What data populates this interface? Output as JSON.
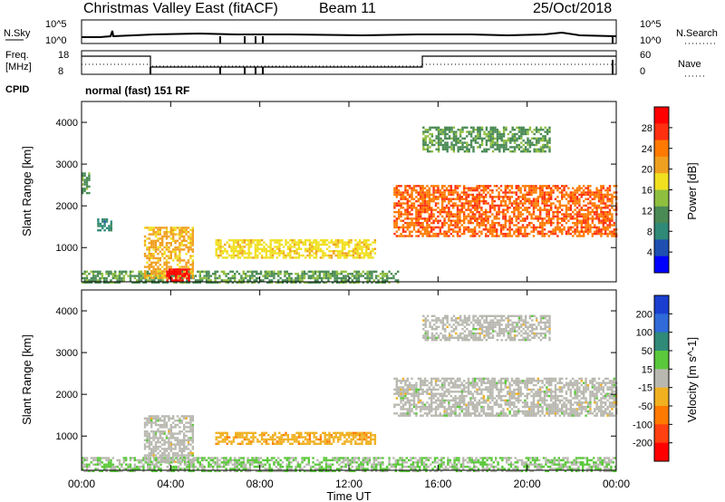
{
  "header": {
    "title": "Christmas Valley East (fitACF)",
    "beam": "Beam 11",
    "date": "25/Oct/2018"
  },
  "sky_panel": {
    "left_label": "N.Sky",
    "left_ticks": [
      "10^5",
      "10^0"
    ],
    "right_ticks": [
      "10^5",
      "10^0"
    ],
    "right_label": "N.Search"
  },
  "freq_panel": {
    "left_label_line1": "Freq.",
    "left_label_line2": "[MHz]",
    "left_ticks": [
      "18",
      "8"
    ],
    "right_ticks": [
      "60",
      "0"
    ],
    "right_label": "Nave"
  },
  "cpid": {
    "label": "CPID",
    "mode": "normal (fast) 151 RF"
  },
  "x_axis": {
    "title": "Time UT",
    "ticks": [
      "00:00",
      "04:00",
      "08:00",
      "12:00",
      "16:00",
      "20:00",
      "00:00"
    ]
  },
  "colors": {
    "power_scale": [
      "#0000ff",
      "#1f4fb0",
      "#2f8a78",
      "#4a8a55",
      "#8fbf3f",
      "#f0e020",
      "#f0a020",
      "#ff7a00",
      "#ff3010",
      "#ff0000"
    ],
    "velocity_scale": [
      "#1a3fd0",
      "#2f6ad8",
      "#2f8a78",
      "#5ac83a",
      "#b8b8b0",
      "#f0b020",
      "#ff7a00",
      "#ff4010",
      "#ff0000"
    ]
  },
  "chart_data": [
    {
      "type": "heatmap",
      "name": "power",
      "xlabel": "Time UT",
      "ylabel": "Slant Range [km]",
      "xlim": [
        0,
        24
      ],
      "ylim": [
        180,
        4500
      ],
      "yticks": [
        "1000",
        "2000",
        "3000",
        "4000"
      ],
      "colorbar": {
        "label": "Power [dB]",
        "ticks": [
          "4",
          "8",
          "12",
          "16",
          "20",
          "24",
          "28"
        ],
        "range": [
          0,
          32
        ]
      },
      "regions": [
        {
          "t_start": 0.0,
          "t_end": 14.2,
          "r_start": 180,
          "r_end": 450,
          "value": 12
        },
        {
          "t_start": 2.8,
          "t_end": 5.0,
          "r_start": 300,
          "r_end": 1500,
          "value": 20
        },
        {
          "t_start": 3.8,
          "t_end": 4.8,
          "r_start": 200,
          "r_end": 500,
          "value": 30
        },
        {
          "t_start": 6.0,
          "t_end": 13.2,
          "r_start": 750,
          "r_end": 1200,
          "value": 18
        },
        {
          "t_start": 0.7,
          "t_end": 1.3,
          "r_start": 1400,
          "r_end": 1700,
          "value": 8
        },
        {
          "t_start": 0.0,
          "t_end": 0.3,
          "r_start": 2300,
          "r_end": 2800,
          "value": 12
        },
        {
          "t_start": 14.0,
          "t_end": 24.0,
          "r_start": 1300,
          "r_end": 2500,
          "value": 25
        },
        {
          "t_start": 15.3,
          "t_end": 21.0,
          "r_start": 3300,
          "r_end": 3900,
          "value": 12
        }
      ]
    },
    {
      "type": "heatmap",
      "name": "velocity",
      "xlabel": "Time UT",
      "ylabel": "Slant Range [km]",
      "xlim": [
        0,
        24
      ],
      "ylim": [
        180,
        4500
      ],
      "yticks": [
        "1000",
        "2000",
        "3000",
        "4000"
      ],
      "colorbar": {
        "label": "Velocity [m s^-1]",
        "ticks": [
          "200",
          "100",
          "50",
          "15",
          "-15",
          "-50",
          "-100",
          "-200"
        ],
        "range": [
          -250,
          250
        ]
      },
      "regions": [
        {
          "t_start": 0.0,
          "t_end": 24.0,
          "r_start": 180,
          "r_end": 500,
          "value": 30
        },
        {
          "t_start": 2.8,
          "t_end": 5.0,
          "r_start": 400,
          "r_end": 1500,
          "value": 0
        },
        {
          "t_start": 6.0,
          "t_end": 13.2,
          "r_start": 800,
          "r_end": 1100,
          "value": -60
        },
        {
          "t_start": 14.0,
          "t_end": 24.0,
          "r_start": 1500,
          "r_end": 2400,
          "value": 0
        },
        {
          "t_start": 15.3,
          "t_end": 21.0,
          "r_start": 3300,
          "r_end": 3900,
          "value": 0
        }
      ]
    }
  ]
}
